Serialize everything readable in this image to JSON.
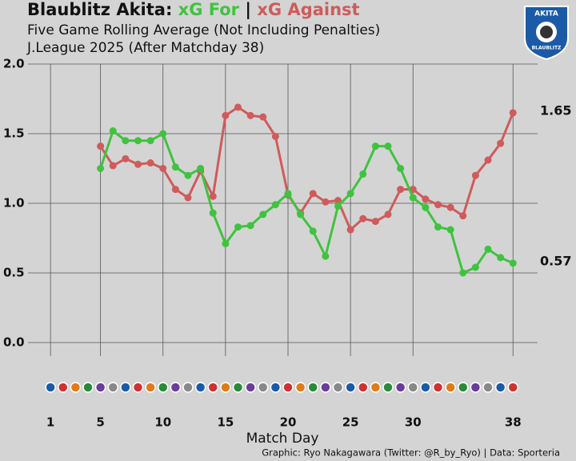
{
  "chart_data": {
    "type": "line",
    "title": "Blaublitz Akita:",
    "title_separator": "|",
    "subtitle": [
      "Five Game Rolling Average (Not Including Penalties)",
      "J.League 2025 (After Matchday 38)"
    ],
    "x_label": "Match Day",
    "caption": "Graphic: Ryo Nakagawara (Twitter: @R_by_Ryo) | Data: Sporteria",
    "logo_text": [
      "AKITA",
      "BLAUBLITZ"
    ],
    "x": [
      5,
      6,
      7,
      8,
      9,
      10,
      11,
      12,
      13,
      14,
      15,
      16,
      17,
      18,
      19,
      20,
      21,
      22,
      23,
      24,
      25,
      26,
      27,
      28,
      29,
      30,
      31,
      32,
      33,
      34,
      35,
      36,
      37,
      38
    ],
    "series": [
      {
        "name": "xG Against",
        "color": "#cf5b5b",
        "values": [
          1.41,
          1.27,
          1.32,
          1.28,
          1.29,
          1.25,
          1.1,
          1.04,
          1.23,
          1.05,
          1.63,
          1.69,
          1.63,
          1.62,
          1.48,
          1.06,
          0.93,
          1.07,
          1.01,
          1.02,
          0.81,
          0.89,
          0.87,
          0.92,
          1.1,
          1.1,
          1.03,
          0.99,
          0.97,
          0.91,
          1.2,
          1.31,
          1.43,
          1.65
        ]
      },
      {
        "name": "xG For",
        "color": "#3fc33f",
        "values": [
          1.25,
          1.52,
          1.45,
          1.45,
          1.45,
          1.5,
          1.26,
          1.2,
          1.25,
          0.93,
          0.71,
          0.83,
          0.84,
          0.92,
          0.99,
          1.07,
          0.92,
          0.8,
          0.62,
          0.98,
          1.07,
          1.21,
          1.41,
          1.41,
          1.25,
          1.04,
          0.97,
          0.83,
          0.81,
          0.5,
          0.54,
          0.67,
          0.61,
          0.57
        ]
      }
    ],
    "xlim": [
      -0.8,
      40.8
    ],
    "xticks": [
      1,
      5,
      10,
      15,
      20,
      25,
      30,
      38
    ],
    "ylim": [
      0,
      2
    ],
    "yticks": [
      {
        "value": 0,
        "label": "0.0"
      },
      0.5,
      {
        "value": 1,
        "label": "1.0"
      },
      1.5,
      {
        "value": 2,
        "label": "2.0"
      }
    ],
    "grid": true
  }
}
